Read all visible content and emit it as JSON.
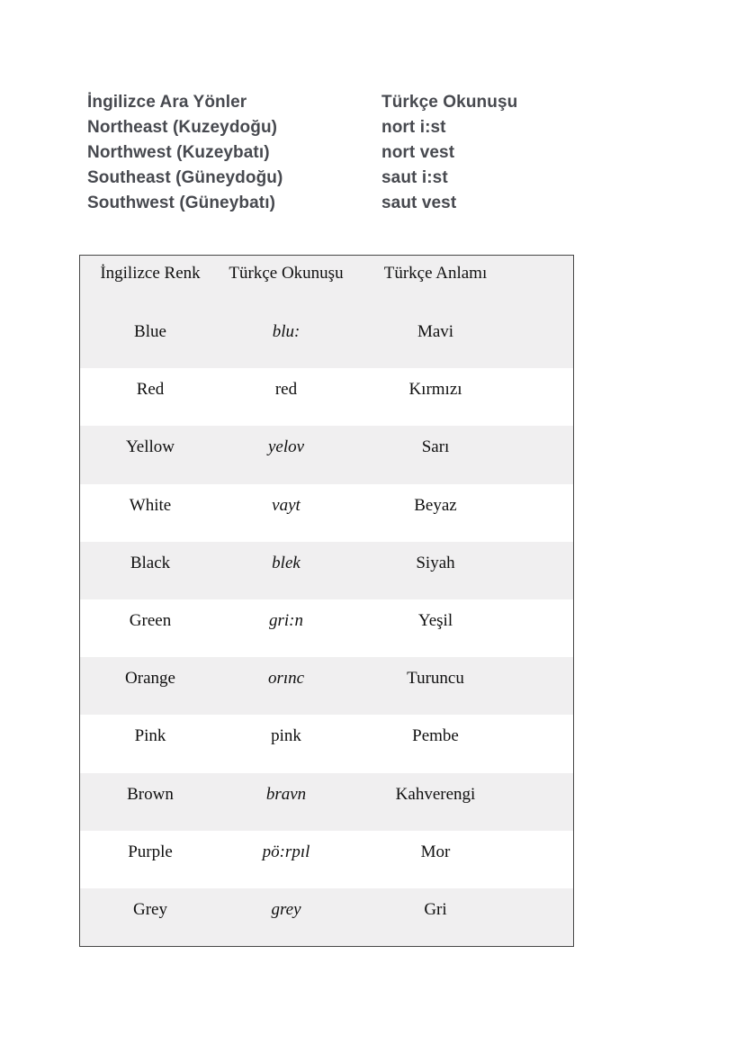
{
  "colors": {
    "page_background": "#ffffff",
    "heading_text": "#47494f",
    "table_text": "#101010",
    "table_stripe": "#f0eff0",
    "table_border": "#474747"
  },
  "directions_section": {
    "left_header": "İngilizce Ara Yönler",
    "right_header": "Türkçe Okunuşu",
    "rows": [
      {
        "english": "Northeast (Kuzeydoğu)",
        "pronunciation": "nort i:st"
      },
      {
        "english": "Northwest (Kuzeybatı)",
        "pronunciation": "nort vest"
      },
      {
        "english": "Southeast (Güneydoğu)",
        "pronunciation": "saut i:st"
      },
      {
        "english": "Southwest (Güneybatı)",
        "pronunciation": "saut vest"
      }
    ]
  },
  "colors_table": {
    "headers": {
      "english": "İngilizce Renk",
      "pronunciation": "Türkçe Okunuşu",
      "meaning": "Türkçe Anlamı"
    },
    "rows": [
      {
        "english": "Blue",
        "pronunciation": "blu:",
        "italic": true,
        "turkish": "Mavi"
      },
      {
        "english": "Red",
        "pronunciation": "red",
        "italic": false,
        "turkish": "Kırmızı"
      },
      {
        "english": "Yellow",
        "pronunciation": "yelov",
        "italic": true,
        "turkish": "Sarı"
      },
      {
        "english": "White",
        "pronunciation": "vayt",
        "italic": true,
        "turkish": "Beyaz"
      },
      {
        "english": "Black",
        "pronunciation": "blek",
        "italic": true,
        "turkish": "Siyah"
      },
      {
        "english": "Green",
        "pronunciation": "gri:n",
        "italic": true,
        "turkish": "Yeşil"
      },
      {
        "english": "Orange",
        "pronunciation": "orınc",
        "italic": true,
        "turkish": "Turuncu"
      },
      {
        "english": "Pink",
        "pronunciation": "pink",
        "italic": false,
        "turkish": "Pembe"
      },
      {
        "english": "Brown",
        "pronunciation": "bravn",
        "italic": true,
        "turkish": "Kahverengi"
      },
      {
        "english": "Purple",
        "pronunciation": "pö:rpıl",
        "italic": true,
        "turkish": "Mor"
      },
      {
        "english": "Grey",
        "pronunciation": "grey",
        "italic": true,
        "turkish": "Gri"
      }
    ]
  }
}
